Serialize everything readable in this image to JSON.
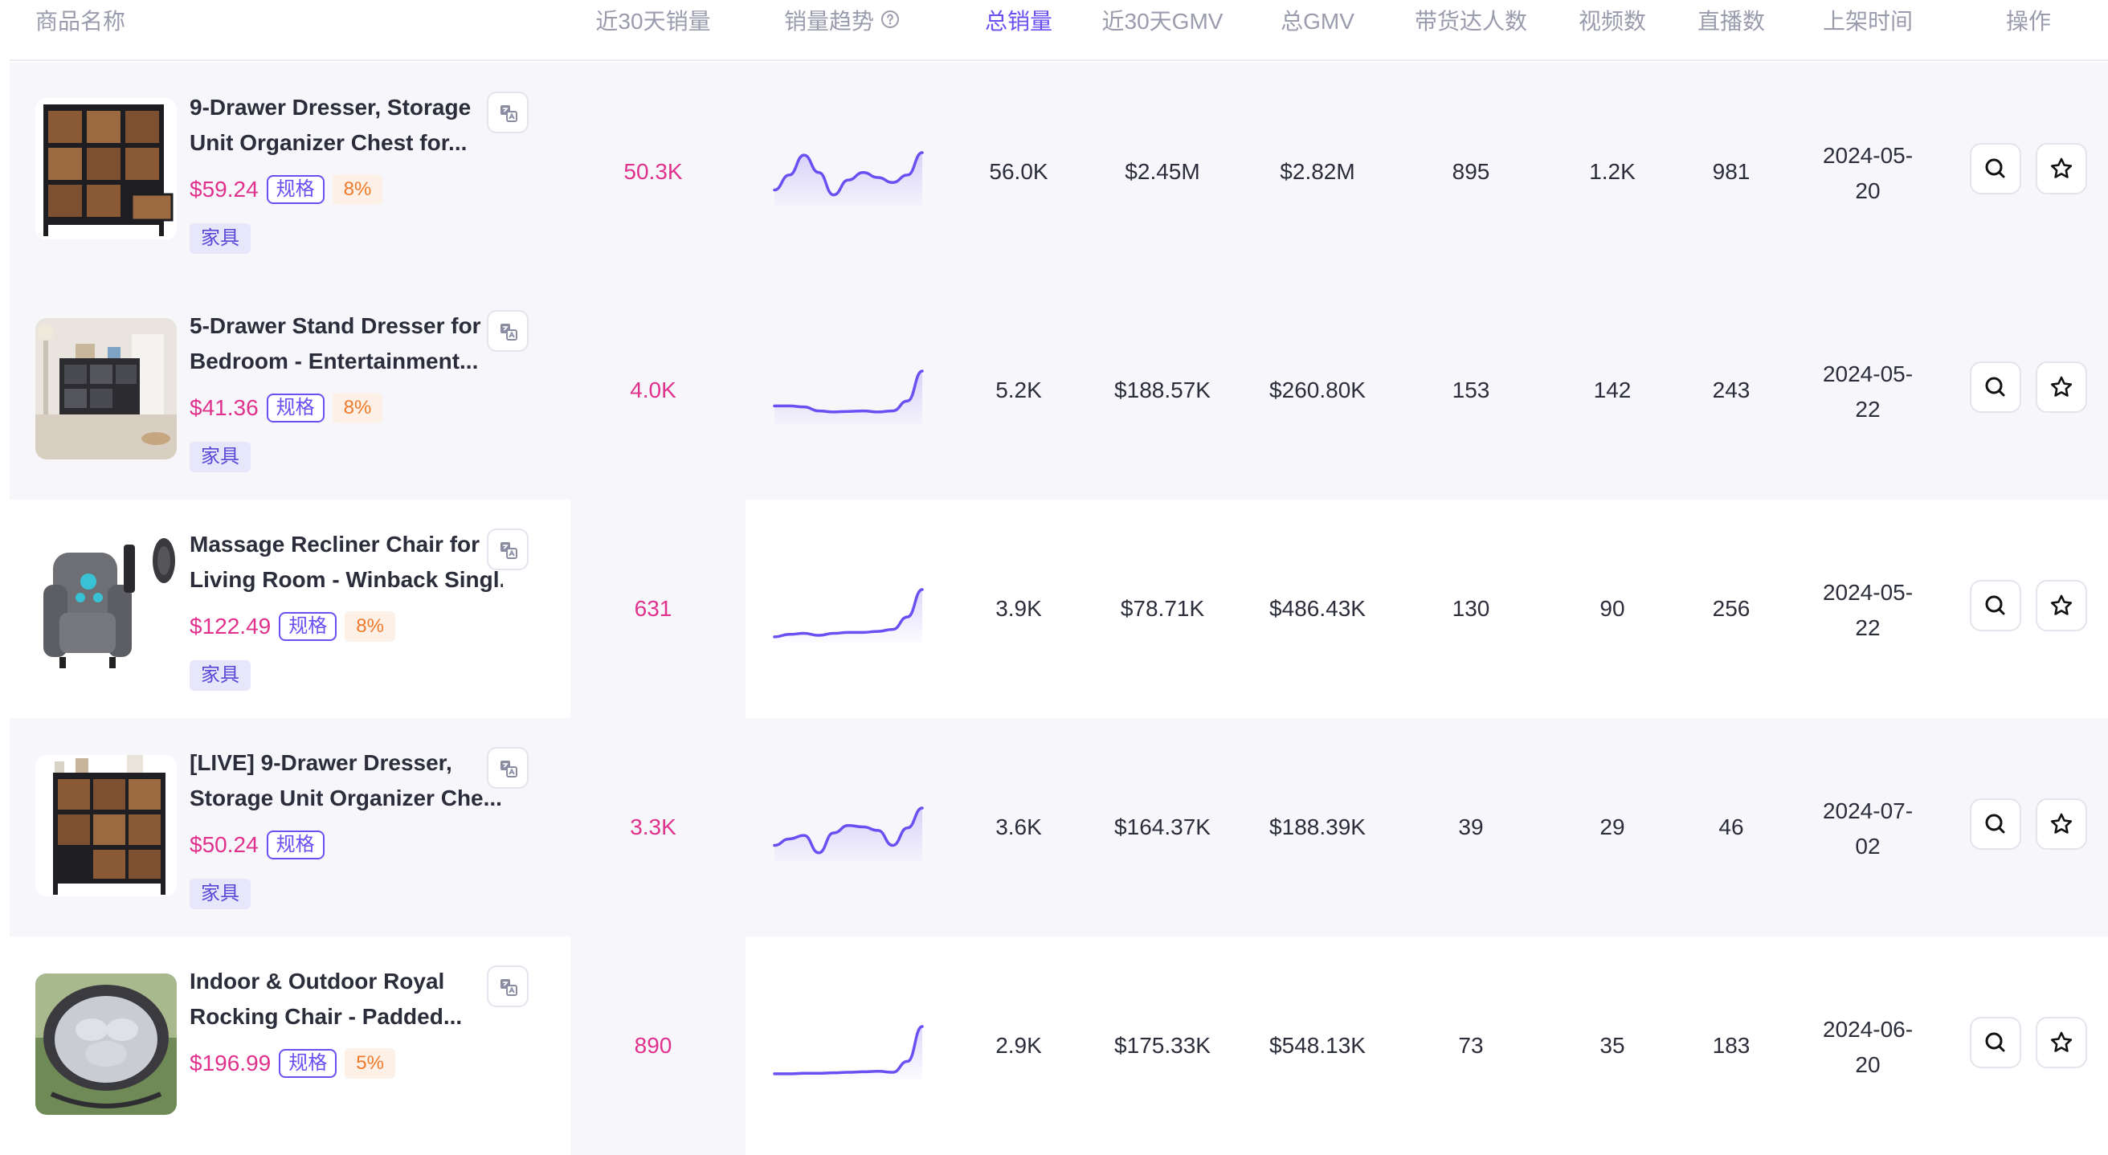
{
  "columns": {
    "product_name": "商品名称",
    "sales_30d": "近30天销量",
    "sales_trend": "销量趋势",
    "total_sales": "总销量",
    "gmv_30d": "近30天GMV",
    "total_gmv": "总GMV",
    "creators": "带货达人数",
    "videos": "视频数",
    "lives": "直播数",
    "listed_date": "上架时间",
    "actions": "操作"
  },
  "sorted_column": "total_sales",
  "colors": {
    "accent": "#6a4ff2",
    "price": "#e0318c",
    "commission": "#f07a2a",
    "category_bg": "#e7e6fb"
  },
  "rows": [
    {
      "title_line1": "9-Drawer Dresser, Storage",
      "title_line2": "Unit Organizer Chest for...",
      "price": "$59.24",
      "spec": "规格",
      "commission": "8%",
      "category": "家具",
      "sales_30d": "50.3K",
      "total_sales": "56.0K",
      "gmv_30d": "$2.45M",
      "total_gmv": "$2.82M",
      "creators": "895",
      "videos": "1.2K",
      "lives": "981",
      "date_line1": "2024-05-",
      "date_line2": "20",
      "trend": [
        0.25,
        0.55,
        0.95,
        0.6,
        0.15,
        0.45,
        0.6,
        0.5,
        0.4,
        0.55,
        1.0
      ]
    },
    {
      "title_line1": "5-Drawer Stand Dresser for",
      "title_line2": "Bedroom - Entertainment...",
      "price": "$41.36",
      "spec": "规格",
      "commission": "8%",
      "category": "家具",
      "sales_30d": "4.0K",
      "total_sales": "5.2K",
      "gmv_30d": "$188.57K",
      "total_gmv": "$260.80K",
      "creators": "153",
      "videos": "142",
      "lives": "243",
      "date_line1": "2024-05-",
      "date_line2": "22",
      "trend": [
        0.3,
        0.3,
        0.28,
        0.2,
        0.18,
        0.19,
        0.2,
        0.18,
        0.2,
        0.4,
        1.0
      ]
    },
    {
      "title_line1": "Massage Recliner Chair for",
      "title_line2": "Living Room - Winback Singl...",
      "price": "$122.49",
      "spec": "规格",
      "commission": "8%",
      "category": "家具",
      "sales_30d": "631",
      "total_sales": "3.9K",
      "gmv_30d": "$78.71K",
      "total_gmv": "$486.43K",
      "creators": "130",
      "videos": "90",
      "lives": "256",
      "date_line1": "2024-05-",
      "date_line2": "22",
      "trend": [
        0.05,
        0.1,
        0.12,
        0.08,
        0.12,
        0.14,
        0.14,
        0.16,
        0.2,
        0.45,
        1.0
      ]
    },
    {
      "title_line1": "[LIVE] 9-Drawer Dresser,",
      "title_line2": "Storage Unit Organizer Che...",
      "price": "$50.24",
      "spec": "规格",
      "commission": "",
      "category": "家具",
      "sales_30d": "3.3K",
      "total_sales": "3.6K",
      "gmv_30d": "$164.37K",
      "total_gmv": "$188.39K",
      "creators": "39",
      "videos": "29",
      "lives": "46",
      "date_line1": "2024-07-",
      "date_line2": "02",
      "trend": [
        0.25,
        0.38,
        0.45,
        0.1,
        0.5,
        0.65,
        0.62,
        0.55,
        0.25,
        0.6,
        1.0
      ]
    },
    {
      "title_line1": "Indoor & Outdoor Royal",
      "title_line2": "Rocking Chair - Padded...",
      "price": "$196.99",
      "spec": "规格",
      "commission": "5%",
      "category": "家具",
      "sales_30d": "890",
      "total_sales": "2.9K",
      "gmv_30d": "$175.33K",
      "total_gmv": "$548.13K",
      "creators": "73",
      "videos": "35",
      "lives": "183",
      "date_line1": "2024-06-",
      "date_line2": "20",
      "trend": [
        0.05,
        0.05,
        0.06,
        0.06,
        0.07,
        0.08,
        0.09,
        0.1,
        0.08,
        0.3,
        1.0
      ]
    }
  ]
}
